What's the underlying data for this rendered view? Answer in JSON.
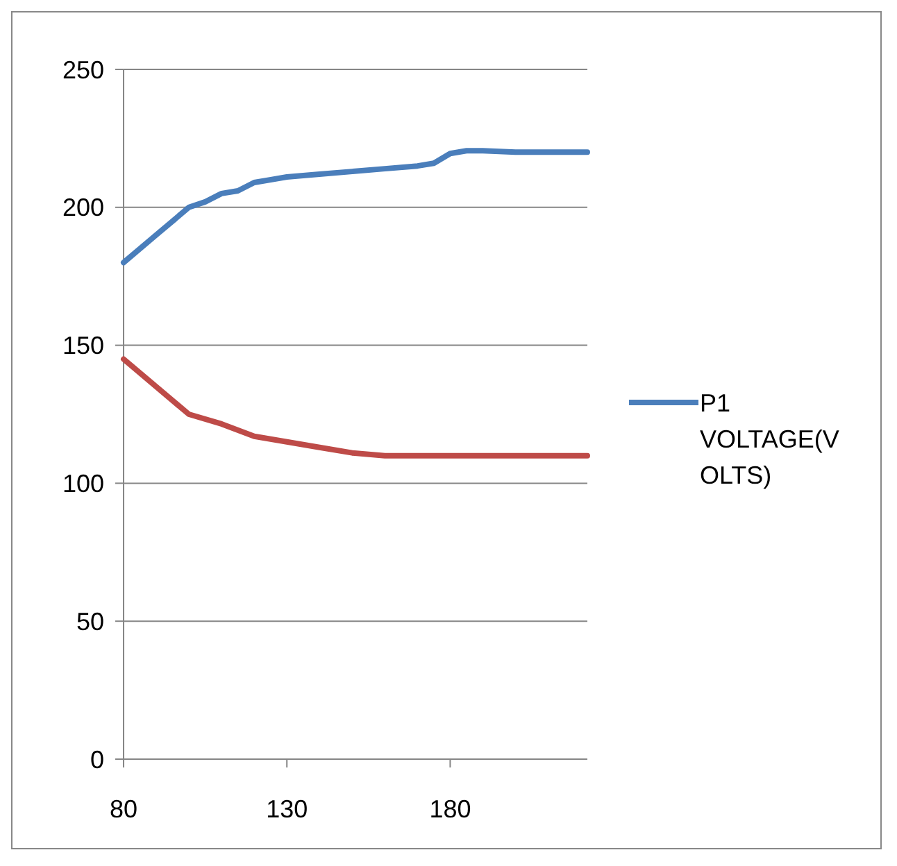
{
  "chart_data": {
    "type": "line",
    "xlim": [
      80,
      222
    ],
    "xticks": [
      80,
      130,
      180
    ],
    "ylim": [
      0,
      250
    ],
    "yticks": [
      0,
      50,
      100,
      150,
      200,
      250
    ],
    "grid": "y",
    "legend": "right",
    "series": [
      {
        "name": "P1 VOLTAGE(VOLTS)",
        "color": "#4a7ebb",
        "x": [
          80,
          90,
          100,
          105,
          110,
          115,
          120,
          130,
          140,
          150,
          160,
          170,
          175,
          180,
          185,
          190,
          200,
          222
        ],
        "values": [
          180,
          190,
          200,
          202,
          205,
          206,
          209,
          211,
          212,
          213,
          214,
          215,
          216,
          219.5,
          220.5,
          220.5,
          220,
          220
        ]
      },
      {
        "color": "#be4b48",
        "x": [
          80,
          100,
          110,
          120,
          130,
          140,
          150,
          160,
          180,
          222
        ],
        "values": [
          145,
          125,
          121.5,
          117,
          115,
          113,
          111,
          110,
          110,
          110
        ]
      }
    ]
  }
}
